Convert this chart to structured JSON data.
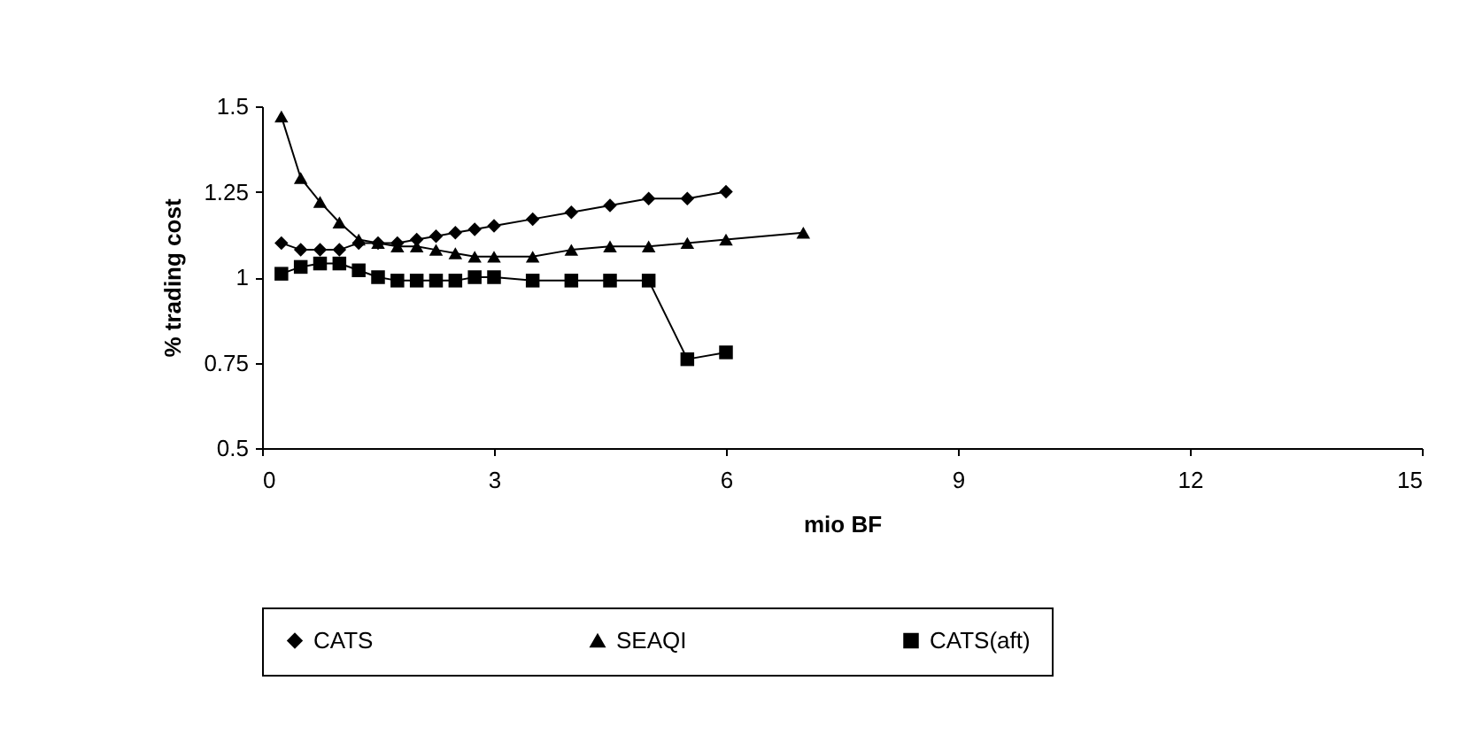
{
  "chart_data": {
    "type": "line",
    "xlabel": "mio BF",
    "ylabel": "% trading cost",
    "xlim": [
      0,
      15
    ],
    "xticks": [
      0,
      3,
      6,
      9,
      12,
      15
    ],
    "ylim": [
      0.5,
      1.5
    ],
    "yticks": [
      0.5,
      0.75,
      1,
      1.25,
      1.5
    ],
    "grid": false,
    "legend": "bottom",
    "line_style": "solid",
    "series": [
      {
        "name": "CATS",
        "color": "#000000",
        "marker": "diamond",
        "x": [
          0.25,
          0.5,
          0.75,
          1,
          1.25,
          1.5,
          1.75,
          2,
          2.25,
          2.5,
          2.75,
          3,
          3.5,
          4,
          4.5,
          5,
          5.5,
          6
        ],
        "values": [
          1.1,
          1.08,
          1.08,
          1.08,
          1.1,
          1.1,
          1.1,
          1.11,
          1.12,
          1.13,
          1.14,
          1.15,
          1.17,
          1.19,
          1.21,
          1.23,
          1.23,
          1.25
        ]
      },
      {
        "name": "SEAQI",
        "color": "#000000",
        "marker": "triangle",
        "x": [
          0.25,
          0.5,
          0.75,
          1,
          1.25,
          1.5,
          1.75,
          2,
          2.25,
          2.5,
          2.75,
          3,
          3.5,
          4,
          4.5,
          5,
          5.5,
          6,
          7
        ],
        "values": [
          1.47,
          1.29,
          1.22,
          1.16,
          1.11,
          1.1,
          1.09,
          1.09,
          1.08,
          1.07,
          1.06,
          1.06,
          1.06,
          1.08,
          1.09,
          1.09,
          1.1,
          1.11,
          1.13
        ]
      },
      {
        "name": "CATS(aft)",
        "color": "#000000",
        "marker": "square",
        "x": [
          0.25,
          0.5,
          0.75,
          1,
          1.25,
          1.5,
          1.75,
          2,
          2.25,
          2.5,
          2.75,
          3,
          3.5,
          4,
          4.5,
          5,
          5.5,
          6
        ],
        "values": [
          1.01,
          1.03,
          1.04,
          1.04,
          1.02,
          1,
          0.99,
          0.99,
          0.99,
          0.99,
          1,
          1,
          0.99,
          0.99,
          0.99,
          0.99,
          0.76,
          0.78
        ]
      }
    ]
  }
}
